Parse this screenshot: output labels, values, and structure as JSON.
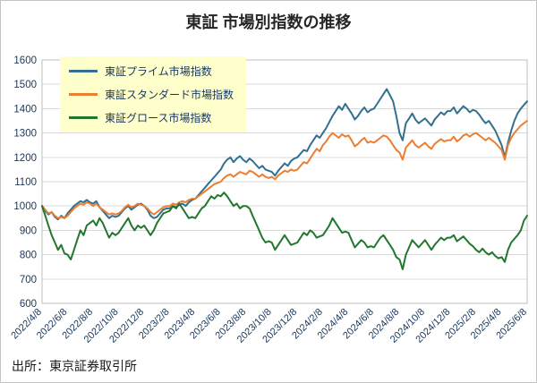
{
  "title": "東証 市場別指数の推移",
  "source": "出所：東京証券取引所",
  "colors": {
    "axis_text": "#17365d",
    "grid": "#d9d9d9",
    "plot_border": "#bfbfbf",
    "legend_bg": "#FFFFCC",
    "title_text": "#262626"
  },
  "chart_data": {
    "type": "line",
    "title": "東証 市場別指数の推移",
    "xlabel": "",
    "ylabel": "",
    "ylim": [
      600,
      1600
    ],
    "y_tick_step": 100,
    "grid": true,
    "legend_position": "top-left",
    "x_tick_labels": [
      "2022/4/8",
      "2022/6/8",
      "2022/8/8",
      "2022/10/8",
      "2022/12/8",
      "2023/2/8",
      "2023/4/8",
      "2023/6/8",
      "2023/8/8",
      "2023/10/8",
      "2023/12/8",
      "2024/2/8",
      "2024/4/8",
      "2024/6/8",
      "2024/8/8",
      "2024/10/8",
      "2024/12/8",
      "2025/2/8",
      "2025/4/8",
      "2025/6/8"
    ],
    "points_per_tick": 8,
    "series": [
      {
        "name": "東証プライム市場指数",
        "color": "#31708f",
        "values": [
          1000,
          980,
          965,
          975,
          955,
          945,
          960,
          950,
          970,
          985,
          1000,
          1010,
          1020,
          1015,
          1025,
          1015,
          1010,
          1020,
          995,
          980,
          965,
          950,
          960,
          955,
          960,
          975,
          990,
          1000,
          985,
          995,
          1005,
          1010,
          1000,
          985,
          960,
          950,
          955,
          970,
          985,
          990,
          990,
          1000,
          995,
          1005,
          1010,
          1000,
          1015,
          1025,
          1030,
          1045,
          1060,
          1075,
          1090,
          1105,
          1120,
          1135,
          1150,
          1175,
          1190,
          1200,
          1180,
          1195,
          1205,
          1190,
          1180,
          1195,
          1185,
          1170,
          1155,
          1165,
          1150,
          1145,
          1140,
          1125,
          1145,
          1160,
          1175,
          1165,
          1185,
          1195,
          1200,
          1215,
          1230,
          1225,
          1250,
          1270,
          1290,
          1280,
          1300,
          1320,
          1345,
          1370,
          1390,
          1410,
          1395,
          1420,
          1400,
          1380,
          1355,
          1370,
          1390,
          1405,
          1385,
          1395,
          1400,
          1420,
          1440,
          1460,
          1480,
          1455,
          1430,
          1370,
          1300,
          1270,
          1340,
          1360,
          1380,
          1355,
          1340,
          1350,
          1360,
          1345,
          1330,
          1355,
          1370,
          1385,
          1375,
          1390,
          1390,
          1405,
          1380,
          1395,
          1410,
          1400,
          1385,
          1395,
          1390,
          1375,
          1355,
          1340,
          1350,
          1330,
          1310,
          1280,
          1250,
          1200,
          1260,
          1310,
          1350,
          1380,
          1400,
          1415,
          1430
        ]
      },
      {
        "name": "東証スタンダード市場指数",
        "color": "#ED7D31",
        "values": [
          1000,
          985,
          970,
          975,
          960,
          950,
          955,
          950,
          960,
          975,
          990,
          1000,
          1010,
          1005,
          1015,
          1010,
          1000,
          1010,
          995,
          985,
          975,
          965,
          970,
          965,
          970,
          980,
          995,
          1005,
          995,
          1000,
          1010,
          1005,
          1000,
          990,
          975,
          965,
          975,
          985,
          995,
          1000,
          1000,
          1010,
          1005,
          1015,
          1020,
          1015,
          1025,
          1030,
          1030,
          1040,
          1050,
          1060,
          1070,
          1080,
          1090,
          1095,
          1100,
          1115,
          1125,
          1130,
          1120,
          1130,
          1140,
          1135,
          1130,
          1145,
          1140,
          1130,
          1120,
          1130,
          1120,
          1115,
          1120,
          1110,
          1125,
          1135,
          1145,
          1140,
          1150,
          1145,
          1150,
          1165,
          1180,
          1175,
          1195,
          1215,
          1235,
          1225,
          1250,
          1265,
          1285,
          1300,
          1290,
          1280,
          1295,
          1285,
          1290,
          1270,
          1245,
          1255,
          1270,
          1280,
          1260,
          1265,
          1260,
          1270,
          1280,
          1290,
          1285,
          1270,
          1250,
          1230,
          1220,
          1190,
          1240,
          1255,
          1270,
          1250,
          1240,
          1250,
          1260,
          1245,
          1235,
          1255,
          1265,
          1275,
          1265,
          1270,
          1270,
          1285,
          1265,
          1275,
          1290,
          1295,
          1285,
          1295,
          1300,
          1290,
          1280,
          1270,
          1280,
          1270,
          1260,
          1245,
          1230,
          1190,
          1250,
          1280,
          1300,
          1315,
          1330,
          1340,
          1350
        ]
      },
      {
        "name": "東証グロース市場指数",
        "color": "#22772e",
        "values": [
          1000,
          960,
          920,
          880,
          850,
          820,
          840,
          805,
          800,
          780,
          820,
          860,
          900,
          880,
          920,
          930,
          940,
          920,
          950,
          930,
          900,
          870,
          890,
          880,
          890,
          910,
          930,
          950,
          920,
          900,
          920,
          910,
          920,
          900,
          880,
          900,
          930,
          950,
          970,
          975,
          980,
          1000,
          990,
          1010,
          990,
          970,
          950,
          955,
          950,
          970,
          990,
          1000,
          1020,
          1040,
          1030,
          1045,
          1040,
          1055,
          1040,
          1020,
          1000,
          1010,
          990,
          1000,
          1000,
          990,
          960,
          930,
          900,
          870,
          850,
          855,
          850,
          820,
          840,
          860,
          880,
          860,
          840,
          845,
          850,
          870,
          890,
          880,
          900,
          890,
          870,
          875,
          880,
          900,
          920,
          950,
          930,
          910,
          890,
          895,
          890,
          860,
          830,
          845,
          860,
          850,
          830,
          835,
          830,
          850,
          870,
          880,
          860,
          840,
          820,
          790,
          780,
          740,
          800,
          830,
          860,
          845,
          830,
          845,
          860,
          840,
          820,
          840,
          855,
          870,
          860,
          870,
          870,
          880,
          855,
          865,
          875,
          860,
          845,
          835,
          820,
          810,
          825,
          810,
          800,
          810,
          795,
          785,
          790,
          770,
          820,
          850,
          865,
          880,
          900,
          940,
          960
        ]
      }
    ]
  }
}
